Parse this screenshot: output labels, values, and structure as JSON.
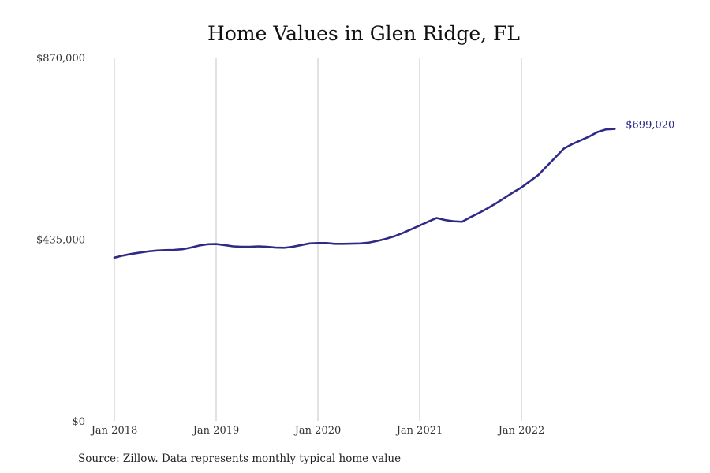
{
  "chart_data": {
    "type": "line",
    "title": "Home Values in Glen Ridge, FL",
    "xlabel": "",
    "ylabel": "",
    "source": "Source: Zillow. Data represents monthly typical home value",
    "ylim": [
      0,
      870000
    ],
    "y_ticks": [
      {
        "value": 0,
        "label": "$0"
      },
      {
        "value": 435000,
        "label": "$435,000"
      },
      {
        "value": 870000,
        "label": "$870,000"
      }
    ],
    "x_ticks": [
      {
        "value": "2018-01",
        "label": "Jan 2018"
      },
      {
        "value": "2019-01",
        "label": "Jan 2019"
      },
      {
        "value": "2020-01",
        "label": "Jan 2020"
      },
      {
        "value": "2021-01",
        "label": "Jan 2021"
      },
      {
        "value": "2022-01",
        "label": "Jan 2022"
      }
    ],
    "grid": "vertical",
    "line_color": "#2e2a86",
    "end_label": "$699,020",
    "series": [
      {
        "x": [
          "2018-01",
          "2018-02",
          "2018-03",
          "2018-04",
          "2018-05",
          "2018-06",
          "2018-07",
          "2018-08",
          "2018-09",
          "2018-10",
          "2018-11",
          "2018-12",
          "2019-01",
          "2019-02",
          "2019-03",
          "2019-04",
          "2019-05",
          "2019-06",
          "2019-07",
          "2019-08",
          "2019-09",
          "2019-10",
          "2019-11",
          "2019-12",
          "2020-01",
          "2020-02",
          "2020-03",
          "2020-04",
          "2020-05",
          "2020-06",
          "2020-07",
          "2020-08",
          "2020-09",
          "2020-10",
          "2020-11",
          "2020-12",
          "2021-01",
          "2021-02",
          "2021-03",
          "2021-04",
          "2021-05",
          "2021-06",
          "2021-07",
          "2021-08",
          "2021-09",
          "2021-10",
          "2021-11",
          "2021-12",
          "2022-01",
          "2022-02",
          "2022-03",
          "2022-04",
          "2022-05",
          "2022-06",
          "2022-07",
          "2022-08",
          "2022-09",
          "2022-10",
          "2022-11",
          "2022-12"
        ],
        "values": [
          391000,
          396000,
          400000,
          403000,
          406000,
          408000,
          409000,
          409500,
          411000,
          415000,
          420000,
          423000,
          423500,
          421000,
          418000,
          417000,
          417000,
          418000,
          417000,
          415000,
          414500,
          417000,
          421000,
          425000,
          426000,
          426000,
          424000,
          424000,
          424500,
          425000,
          427000,
          431000,
          436000,
          442000,
          450000,
          459000,
          468000,
          477000,
          486000,
          481000,
          478000,
          477000,
          488000,
          498000,
          509000,
          521000,
          534000,
          547000,
          559000,
          574000,
          589000,
          610000,
          631000,
          652000,
          663000,
          672000,
          681000,
          692000,
          698000,
          699020
        ]
      }
    ]
  }
}
